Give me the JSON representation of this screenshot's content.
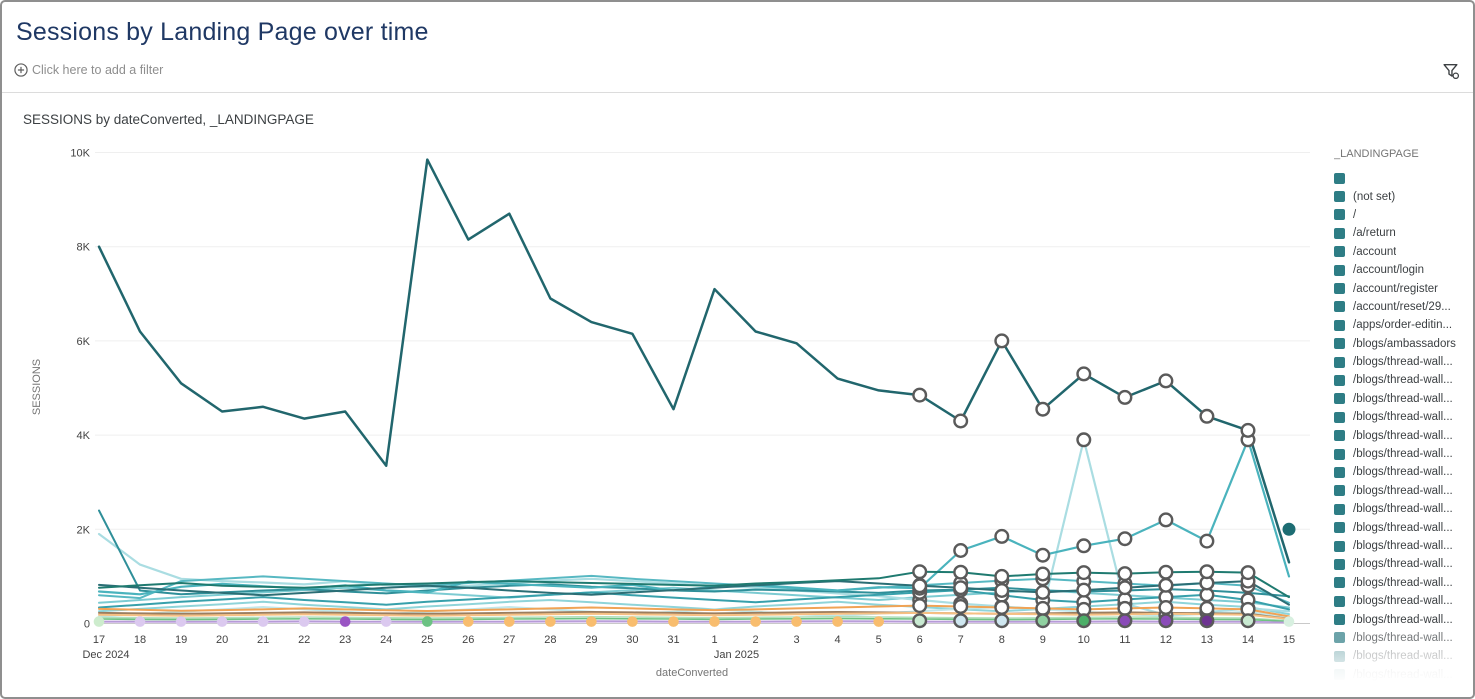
{
  "window": {
    "title": "Sessions by Landing Page over time"
  },
  "filter_bar": {
    "add_filter_label": "Click here to add a filter"
  },
  "colors": {
    "title_text": "#1f3864",
    "legend_swatch": "#2e7d85",
    "ring_stroke": "#5a5a5a",
    "axis_text": "#424242",
    "muted_text": "#757575",
    "gridline": "#efefef",
    "baseline": "#c9c9c9"
  },
  "legend": {
    "title": "_LANDINGPAGE",
    "items": [
      {
        "label": ""
      },
      {
        "label": "(not set)"
      },
      {
        "label": "/"
      },
      {
        "label": "/a/return"
      },
      {
        "label": "/account"
      },
      {
        "label": "/account/login"
      },
      {
        "label": "/account/register"
      },
      {
        "label": "/account/reset/29..."
      },
      {
        "label": "/apps/order-editin..."
      },
      {
        "label": "/blogs/ambassadors"
      },
      {
        "label": "/blogs/thread-wall..."
      },
      {
        "label": "/blogs/thread-wall..."
      },
      {
        "label": "/blogs/thread-wall..."
      },
      {
        "label": "/blogs/thread-wall..."
      },
      {
        "label": "/blogs/thread-wall..."
      },
      {
        "label": "/blogs/thread-wall..."
      },
      {
        "label": "/blogs/thread-wall..."
      },
      {
        "label": "/blogs/thread-wall..."
      },
      {
        "label": "/blogs/thread-wall..."
      },
      {
        "label": "/blogs/thread-wall..."
      },
      {
        "label": "/blogs/thread-wall..."
      },
      {
        "label": "/blogs/thread-wall..."
      },
      {
        "label": "/blogs/thread-wall..."
      },
      {
        "label": "/blogs/thread-wall..."
      },
      {
        "label": "/blogs/thread-wall..."
      },
      {
        "label": "/blogs/thread-wall...",
        "opacity": 0.7
      },
      {
        "label": "/blogs/thread-wall...",
        "opacity": 0.4
      },
      {
        "label": "/blogs/thread-wall...",
        "opacity": 0.16
      }
    ]
  },
  "chart_data": {
    "type": "line",
    "title": "SESSIONS by dateConverted, _LANDINGPAGE",
    "xlabel": "dateConverted",
    "ylabel": "SESSIONS",
    "ylim": [
      0,
      10000
    ],
    "yticks": [
      0,
      2000,
      4000,
      6000,
      8000,
      10000
    ],
    "ytick_labels": [
      "0",
      "2K",
      "4K",
      "6K",
      "8K",
      "10K"
    ],
    "grid": "horizontal",
    "legend_position": "right",
    "categories": [
      "17",
      "18",
      "19",
      "20",
      "21",
      "22",
      "23",
      "24",
      "25",
      "26",
      "27",
      "28",
      "29",
      "30",
      "31",
      "1",
      "2",
      "3",
      "4",
      "5",
      "6",
      "7",
      "8",
      "9",
      "10",
      "11",
      "12",
      "13",
      "14",
      "15"
    ],
    "month_labels": [
      {
        "index": 0,
        "dx": 7,
        "label": "Dec 2024"
      },
      {
        "index": 15,
        "dx": 22,
        "label": "Jan 2025"
      }
    ],
    "ring_marker_indices": [
      20,
      21,
      22,
      23,
      24,
      25,
      26,
      27,
      28
    ],
    "series": [
      {
        "name": "series-09",
        "color": "#8fd4d9",
        "width": 2,
        "values": [
          260,
          310,
          360,
          410,
          460,
          400,
          350,
          300,
          360,
          410,
          460,
          500,
          450,
          400,
          350,
          300,
          360,
          410,
          460,
          400,
          350,
          300,
          260,
          310,
          360,
          410,
          460,
          400,
          350,
          200
        ]
      },
      {
        "name": "series-10",
        "color": "#c2e7ea",
        "width": 2,
        "values": [
          150,
          200,
          250,
          300,
          350,
          300,
          250,
          200,
          250,
          300,
          350,
          300,
          250,
          200,
          250,
          300,
          250,
          200,
          160,
          210,
          260,
          310,
          350,
          300,
          250,
          200,
          160,
          210,
          250,
          120
        ]
      },
      {
        "name": "series-07",
        "color": "#7ccbd2",
        "width": 2,
        "values": [
          440,
          500,
          560,
          610,
          660,
          710,
          760,
          700,
          650,
          600,
          550,
          610,
          660,
          710,
          760,
          700,
          650,
          600,
          550,
          500,
          560,
          610,
          660,
          710,
          650,
          600,
          550,
          500,
          450,
          340
        ]
      },
      {
        "name": "series-03",
        "color": "#aadde2",
        "width": 2.2,
        "rings": true,
        "values": [
          1900,
          1250,
          950,
          900,
          870,
          830,
          900,
          820,
          760,
          800,
          860,
          910,
          950,
          900,
          850,
          800,
          760,
          700,
          640,
          580,
          500,
          420,
          360,
          300,
          3900,
          420,
          180,
          240,
          320,
          260
        ]
      },
      {
        "name": "series-06",
        "color": "#57b8c2",
        "width": 2,
        "values": [
          600,
          540,
          900,
          950,
          1000,
          950,
          900,
          850,
          800,
          860,
          910,
          960,
          1010,
          950,
          900,
          850,
          800,
          740,
          700,
          760,
          810,
          860,
          910,
          950,
          900,
          850,
          800,
          860,
          800,
          440
        ],
        "rings": true
      },
      {
        "name": "series-08",
        "color": "#37a0ab",
        "width": 2,
        "rings": true,
        "values": [
          340,
          400,
          460,
          510,
          560,
          500,
          450,
          400,
          460,
          510,
          560,
          610,
          660,
          600,
          550,
          500,
          450,
          510,
          560,
          610,
          660,
          710,
          600,
          500,
          450,
          510,
          560,
          610,
          500,
          300
        ]
      },
      {
        "name": "series-04",
        "color": "#2f8f99",
        "width": 2,
        "values": [
          2400,
          700,
          620,
          660,
          700,
          730,
          680,
          640,
          700,
          760,
          800,
          830,
          780,
          750,
          700,
          680,
          720,
          700,
          680,
          650,
          700,
          720,
          760,
          700,
          680,
          700,
          730,
          700,
          650,
          580
        ]
      },
      {
        "name": "series-02",
        "color": "#4ab3bd",
        "width": 2.2,
        "rings": true,
        "values": [
          680,
          620,
          780,
          840,
          790,
          740,
          810,
          700,
          660,
          890,
          840,
          800,
          760,
          820,
          700,
          780,
          820,
          760,
          700,
          770,
          750,
          1550,
          1850,
          1450,
          1650,
          1800,
          2200,
          1750,
          3900,
          1000
        ]
      },
      {
        "name": "series-11",
        "color": "#2b6e75",
        "width": 2,
        "rings": true,
        "values": [
          820,
          760,
          700,
          650,
          600,
          650,
          700,
          760,
          800,
          760,
          700,
          650,
          610,
          660,
          710,
          760,
          810,
          860,
          900,
          850,
          800,
          760,
          700,
          660,
          710,
          760,
          810,
          860,
          900,
          400
        ]
      },
      {
        "name": "series-05",
        "color": "#1f7a70",
        "width": 2,
        "rings": true,
        "values": [
          760,
          810,
          860,
          800,
          780,
          760,
          800,
          830,
          850,
          880,
          900,
          880,
          860,
          840,
          820,
          800,
          850,
          880,
          920,
          960,
          1100,
          1090,
          1000,
          1050,
          1080,
          1060,
          1090,
          1100,
          1080,
          560
        ]
      },
      {
        "name": "series-14",
        "color": "#9b7d5e",
        "width": 2,
        "values": [
          225,
          215,
          205,
          215,
          225,
          235,
          225,
          215,
          205,
          215,
          225,
          235,
          245,
          235,
          225,
          215,
          225,
          235,
          245,
          235,
          225,
          215,
          205,
          215,
          225,
          235,
          225,
          215,
          205,
          100
        ]
      },
      {
        "name": "series-13",
        "color": "#f6c083",
        "width": 2,
        "values": [
          185,
          175,
          165,
          175,
          185,
          195,
          185,
          175,
          165,
          175,
          185,
          195,
          205,
          195,
          185,
          175,
          185,
          195,
          205,
          215,
          225,
          215,
          205,
          195,
          185,
          195,
          205,
          195,
          185,
          95
        ]
      },
      {
        "name": "series-12",
        "color": "#f0a355",
        "width": 2,
        "rings": true,
        "values": [
          310,
          290,
          270,
          285,
          300,
          320,
          300,
          280,
          265,
          285,
          300,
          320,
          340,
          320,
          300,
          285,
          300,
          320,
          340,
          360,
          380,
          360,
          340,
          320,
          300,
          320,
          340,
          320,
          300,
          150
        ]
      },
      {
        "name": "series-16",
        "color": "#b1dfbb",
        "width": 1.6,
        "values": [
          130,
          122,
          115,
          122,
          130,
          138,
          130,
          122,
          115,
          122,
          130,
          138,
          145,
          138,
          130,
          122,
          130,
          138,
          145,
          138,
          130,
          122,
          115,
          122,
          130,
          138,
          130,
          122,
          115,
          60
        ]
      },
      {
        "name": "series-15",
        "color": "#6fc383",
        "width": 1.6,
        "values": [
          95,
          88,
          82,
          88,
          95,
          100,
          95,
          88,
          82,
          88,
          95,
          100,
          105,
          100,
          95,
          88,
          95,
          100,
          105,
          100,
          95,
          88,
          82,
          88,
          95,
          100,
          95,
          88,
          82,
          45
        ]
      },
      {
        "name": "series-18",
        "color": "#dcc8ef",
        "width": 1.6,
        "values": [
          28,
          26,
          25,
          26,
          28,
          30,
          28,
          26,
          25,
          26,
          28,
          30,
          32,
          30,
          28,
          26,
          28,
          30,
          32,
          30,
          28,
          26,
          25,
          26,
          28,
          30,
          28,
          26,
          25,
          14
        ]
      },
      {
        "name": "series-17",
        "color": "#b79bd8",
        "width": 1.6,
        "values": [
          45,
          42,
          40,
          42,
          45,
          48,
          45,
          42,
          40,
          42,
          45,
          48,
          50,
          48,
          45,
          42,
          45,
          48,
          50,
          48,
          45,
          42,
          40,
          42,
          45,
          48,
          45,
          42,
          40,
          22
        ]
      },
      {
        "name": "series-primary",
        "color": "#21666d",
        "width": 2.5,
        "rings": true,
        "values": [
          8000,
          6200,
          5100,
          4500,
          4600,
          4350,
          4500,
          3350,
          9850,
          8150,
          8700,
          6900,
          6400,
          6150,
          4550,
          7100,
          6200,
          5950,
          5200,
          4950,
          4850,
          4300,
          6000,
          4550,
          5300,
          4800,
          5150,
          4400,
          4100,
          1300
        ]
      }
    ],
    "baseline_markers": [
      {
        "index": 0,
        "color": "#cdeccd",
        "ring": false
      },
      {
        "index": 1,
        "color": "#dbc9ef",
        "ring": false
      },
      {
        "index": 2,
        "color": "#dbc9ef",
        "ring": false
      },
      {
        "index": 3,
        "color": "#dbc9ef",
        "ring": false
      },
      {
        "index": 4,
        "color": "#dbc9ef",
        "ring": false
      },
      {
        "index": 5,
        "color": "#dbc9ef",
        "ring": false
      },
      {
        "index": 6,
        "color": "#9a55c4",
        "ring": false
      },
      {
        "index": 7,
        "color": "#dbc9ef",
        "ring": false
      },
      {
        "index": 8,
        "color": "#6cc283",
        "ring": false
      },
      {
        "index": 9,
        "color": "#f8bd6e",
        "ring": false
      },
      {
        "index": 10,
        "color": "#f8bd6e",
        "ring": false
      },
      {
        "index": 11,
        "color": "#f8bd6e",
        "ring": false
      },
      {
        "index": 12,
        "color": "#f8bd6e",
        "ring": false
      },
      {
        "index": 13,
        "color": "#f8bd6e",
        "ring": false
      },
      {
        "index": 14,
        "color": "#f8bd6e",
        "ring": false
      },
      {
        "index": 15,
        "color": "#f8bd6e",
        "ring": false
      },
      {
        "index": 16,
        "color": "#f8bd6e",
        "ring": false
      },
      {
        "index": 17,
        "color": "#f8bd6e",
        "ring": false
      },
      {
        "index": 18,
        "color": "#f8bd6e",
        "ring": false
      },
      {
        "index": 19,
        "color": "#f8bd6e",
        "ring": false
      },
      {
        "index": 20,
        "color": "#c9ead2",
        "ring": true
      },
      {
        "index": 21,
        "color": "#cfe7f0",
        "ring": true
      },
      {
        "index": 22,
        "color": "#cfe7f0",
        "ring": true
      },
      {
        "index": 23,
        "color": "#8fd1a0",
        "ring": true
      },
      {
        "index": 24,
        "color": "#4caf68",
        "ring": true
      },
      {
        "index": 25,
        "color": "#8a4bb8",
        "ring": true
      },
      {
        "index": 26,
        "color": "#8a4bb8",
        "ring": true
      },
      {
        "index": 27,
        "color": "#6d3391",
        "ring": true
      },
      {
        "index": 28,
        "color": "#c9ead2",
        "ring": true
      },
      {
        "index": 29,
        "color": "#d8f0e0",
        "ring": false
      }
    ],
    "isolated_point": {
      "index": 29,
      "value": 2000,
      "color": "#1d6d73"
    }
  }
}
